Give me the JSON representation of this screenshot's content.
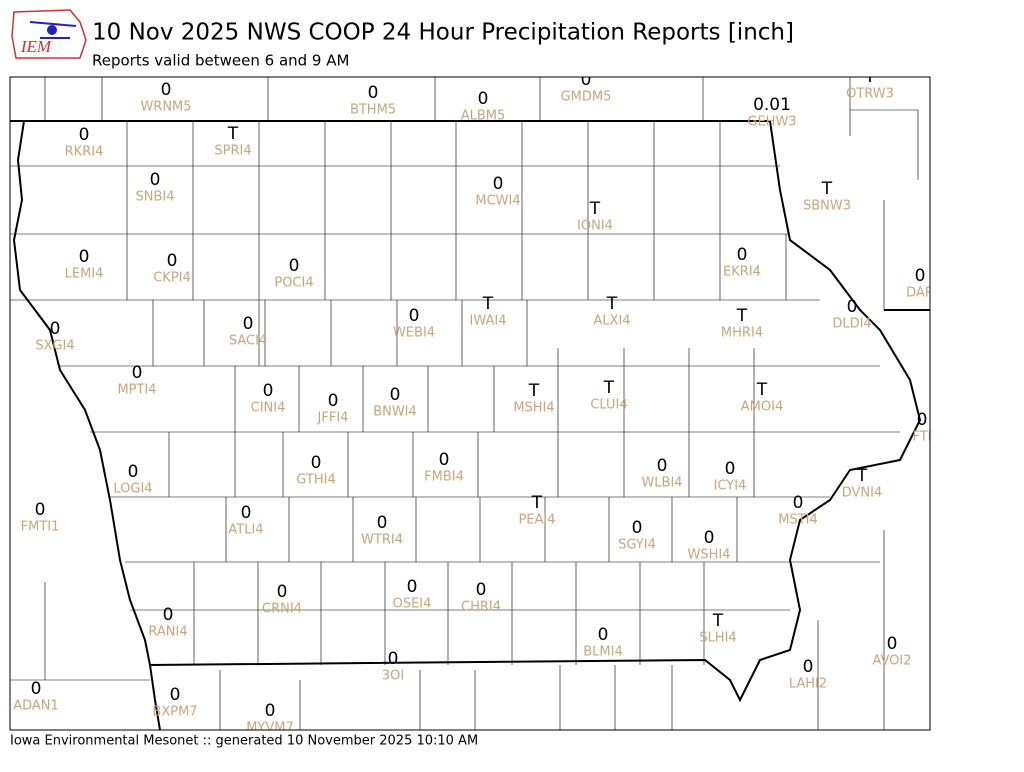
{
  "header": {
    "logo": "IEM",
    "title": "10 Nov 2025 NWS COOP 24 Hour Precipitation Reports [inch]",
    "subtitle": "Reports valid between 6 and 9 AM"
  },
  "footer": "Iowa Environmental Mesonet :: generated 10 November 2025 10:10 AM",
  "stations": [
    {
      "id": "WRNM5",
      "value": 0
    },
    {
      "id": "BTHM5",
      "value": 0
    },
    {
      "id": "ALBM5",
      "value": 0
    },
    {
      "id": "GMDM5",
      "value": 0
    },
    {
      "id": "GEHW3",
      "value": 0.01
    },
    {
      "id": "OTRW3",
      "value": "T"
    },
    {
      "id": "RKRI4",
      "value": 0
    },
    {
      "id": "SPRI4",
      "value": "T"
    },
    {
      "id": "SNBI4",
      "value": 0
    },
    {
      "id": "MCWI4",
      "value": 0
    },
    {
      "id": "IONI4",
      "value": "T"
    },
    {
      "id": "SBNW3",
      "value": "T"
    },
    {
      "id": "LEMI4",
      "value": 0
    },
    {
      "id": "CKPI4",
      "value": 0
    },
    {
      "id": "POCI4",
      "value": 0
    },
    {
      "id": "EKRI4",
      "value": 0
    },
    {
      "id": "DAR",
      "value": 0
    },
    {
      "id": "SXGI4",
      "value": 0
    },
    {
      "id": "SACI4",
      "value": 0
    },
    {
      "id": "WEBI4",
      "value": 0
    },
    {
      "id": "IWAI4",
      "value": "T"
    },
    {
      "id": "ALXI4",
      "value": "T"
    },
    {
      "id": "MHRI4",
      "value": "T"
    },
    {
      "id": "DLDI4",
      "value": 0
    },
    {
      "id": "MPTI4",
      "value": 0
    },
    {
      "id": "CINI4",
      "value": 0
    },
    {
      "id": "JFFI4",
      "value": 0
    },
    {
      "id": "BNWI4",
      "value": 0
    },
    {
      "id": "MSHI4",
      "value": "T"
    },
    {
      "id": "CLUI4",
      "value": "T"
    },
    {
      "id": "AMOI4",
      "value": "T"
    },
    {
      "id": "FTI",
      "value": 0
    },
    {
      "id": "LOGI4",
      "value": 0
    },
    {
      "id": "GTHI4",
      "value": 0
    },
    {
      "id": "FMBI4",
      "value": 0
    },
    {
      "id": "WLBI4",
      "value": 0
    },
    {
      "id": "ICYI4",
      "value": 0
    },
    {
      "id": "DVNI4",
      "value": "T"
    },
    {
      "id": "FMTI1",
      "value": 0
    },
    {
      "id": "ATLI4",
      "value": 0
    },
    {
      "id": "PEAI4",
      "value": "T"
    },
    {
      "id": "MSTI4",
      "value": 0
    },
    {
      "id": "WTRI4",
      "value": 0
    },
    {
      "id": "SGYI4",
      "value": 0
    },
    {
      "id": "WSHI4",
      "value": 0
    },
    {
      "id": "CRNI4",
      "value": 0
    },
    {
      "id": "OSEI4",
      "value": 0
    },
    {
      "id": "CHRI4",
      "value": 0
    },
    {
      "id": "RANI4",
      "value": 0
    },
    {
      "id": "SLHI4",
      "value": "T"
    },
    {
      "id": "BLMI4",
      "value": 0
    },
    {
      "id": "AVOI2",
      "value": 0
    },
    {
      "id": "3OI",
      "value": 0
    },
    {
      "id": "LAHI2",
      "value": 0
    },
    {
      "id": "ADAN1",
      "value": 0
    },
    {
      "id": "BXPM7",
      "value": 0
    },
    {
      "id": "MYVM7",
      "value": 0
    }
  ]
}
